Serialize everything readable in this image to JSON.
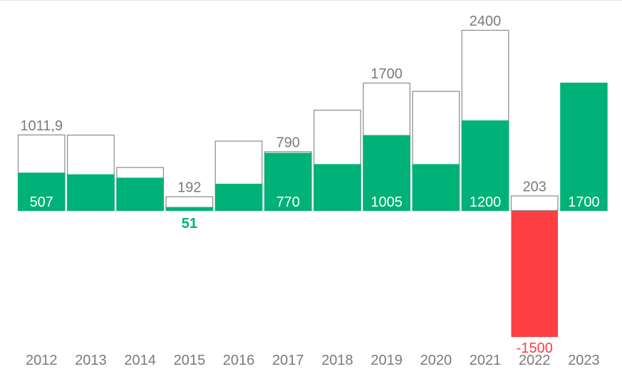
{
  "chart_data": {
    "type": "bar",
    "title": "",
    "xlabel": "",
    "ylabel": "",
    "ylim": [
      -1500,
      2400
    ],
    "grid": false,
    "legend": "none",
    "colors": {
      "outline": "#8a8a8a",
      "filled": "#00b178",
      "negative": "#fd3e43",
      "label": "#7a7a7a"
    },
    "categories": [
      "2012",
      "2013",
      "2014",
      "2015",
      "2016",
      "2017",
      "2018",
      "2019",
      "2020",
      "2021",
      "2022",
      "2023"
    ],
    "series": [
      {
        "values": [
          1011.9,
          1010,
          580,
          192,
          930,
          790,
          1340,
          1700,
          1590,
          2400,
          203,
          null
        ],
        "labels": [
          "1011,9",
          "",
          "",
          "192",
          "",
          "790",
          "",
          "1700",
          "",
          "2400",
          "203",
          ""
        ]
      },
      {
        "values": [
          507,
          485,
          440,
          51,
          360,
          770,
          620,
          1005,
          620,
          1200,
          -1500,
          1700
        ],
        "labels": [
          "507",
          "",
          "",
          "51",
          "",
          "770",
          "",
          "1005",
          "",
          "1200",
          "-1500",
          "1700"
        ]
      }
    ]
  }
}
